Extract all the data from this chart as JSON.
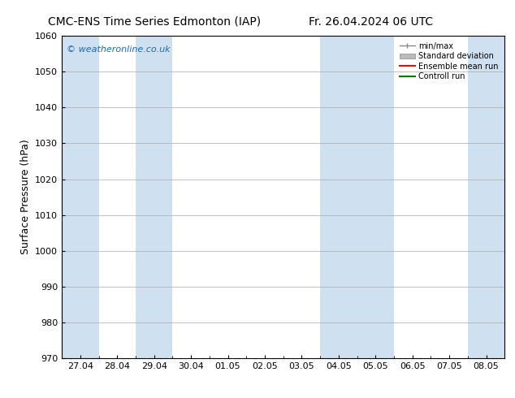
{
  "title_left": "CMC-ENS Time Series Edmonton (IAP)",
  "title_right": "Fr. 26.04.2024 06 UTC",
  "ylabel": "Surface Pressure (hPa)",
  "ylim": [
    970,
    1060
  ],
  "yticks": [
    970,
    980,
    990,
    1000,
    1010,
    1020,
    1030,
    1040,
    1050,
    1060
  ],
  "x_labels": [
    "27.04",
    "28.04",
    "29.04",
    "30.04",
    "01.05",
    "02.05",
    "03.05",
    "04.05",
    "05.05",
    "06.05",
    "07.05",
    "08.05"
  ],
  "x_positions": [
    0,
    1,
    2,
    3,
    4,
    5,
    6,
    7,
    8,
    9,
    10,
    11
  ],
  "shaded_bands": [
    {
      "x_start": -0.5,
      "x_end": 0.5
    },
    {
      "x_start": 1.5,
      "x_end": 2.5
    },
    {
      "x_start": 6.5,
      "x_end": 8.5
    },
    {
      "x_start": 10.5,
      "x_end": 11.5
    }
  ],
  "shaded_color": "#cfe0f0",
  "watermark": "© weatheronline.co.uk",
  "watermark_color": "#1a6bb5",
  "background_color": "#ffffff",
  "plot_bg_color": "#ffffff",
  "legend_labels": [
    "min/max",
    "Standard deviation",
    "Ensemble mean run",
    "Controll run"
  ],
  "legend_colors_line": [
    "#888888",
    "#bbbbbb",
    "#ff0000",
    "#008000"
  ],
  "title_fontsize": 10,
  "axis_label_fontsize": 9,
  "tick_fontsize": 8,
  "grid_color": "#aaaaaa",
  "xlim": [
    -0.5,
    11.5
  ]
}
